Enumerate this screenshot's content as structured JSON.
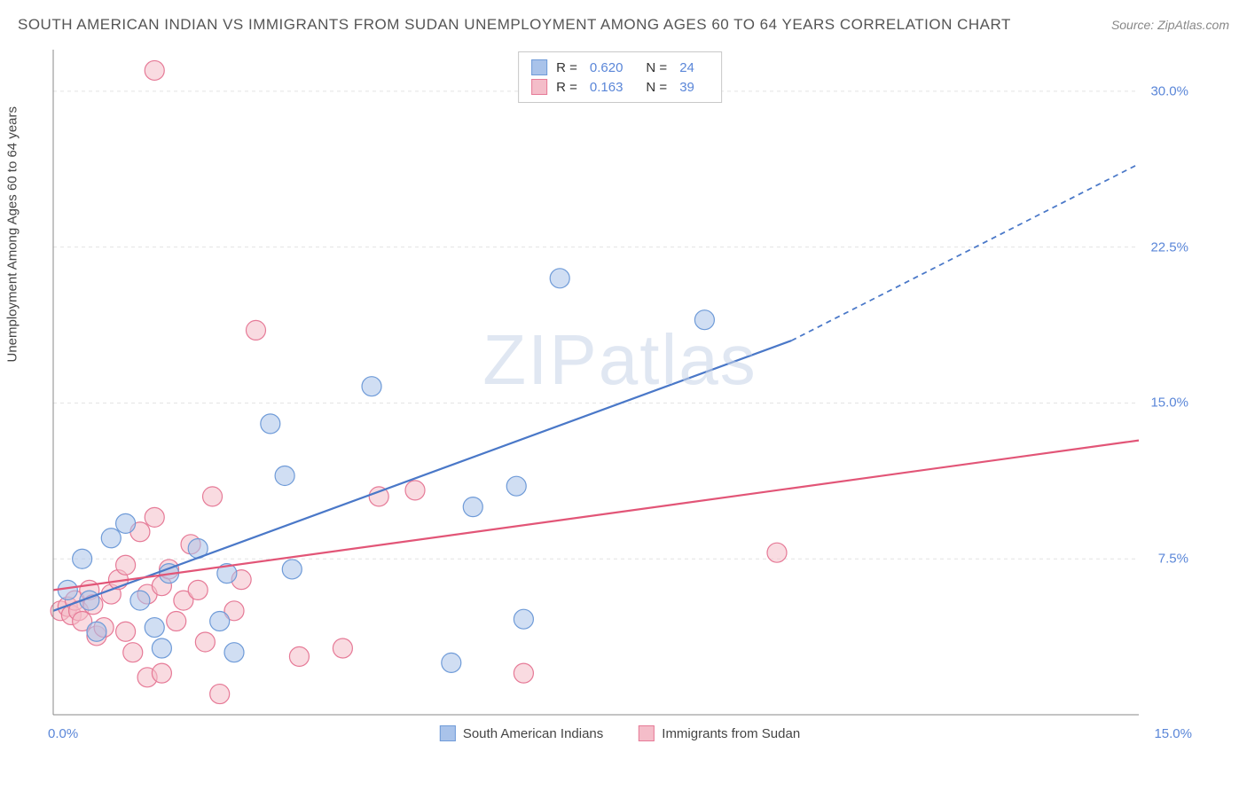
{
  "header": {
    "title": "SOUTH AMERICAN INDIAN VS IMMIGRANTS FROM SUDAN UNEMPLOYMENT AMONG AGES 60 TO 64 YEARS CORRELATION CHART",
    "source": "Source: ZipAtlas.com"
  },
  "watermark": "ZIPatlas",
  "yAxisLabel": "Unemployment Among Ages 60 to 64 years",
  "chart": {
    "type": "scatter",
    "xlim": [
      0,
      15
    ],
    "ylim": [
      0,
      32
    ],
    "xTickLeft": "0.0%",
    "xTickRight": "15.0%",
    "yTicks": [
      {
        "value": 7.5,
        "label": "7.5%"
      },
      {
        "value": 15.0,
        "label": "15.0%"
      },
      {
        "value": 22.5,
        "label": "22.5%"
      },
      {
        "value": 30.0,
        "label": "30.0%"
      }
    ],
    "background_color": "#ffffff",
    "grid_color": "#e4e4e4",
    "axis_color": "#888888",
    "marker_radius": 11,
    "marker_opacity": 0.55,
    "series": [
      {
        "id": "series-a",
        "label": "South American Indians",
        "color_fill": "#a9c3ea",
        "color_stroke": "#6f9bd8",
        "r_value": "0.620",
        "n_value": "24",
        "trend": {
          "x1": 0,
          "y1": 5.0,
          "x2": 10.2,
          "y2": 18.0,
          "dash_from_x": 10.2,
          "dash_to_x": 15.0,
          "dash_to_y": 26.5,
          "stroke": "#4a78c8",
          "width": 2.2
        },
        "points": [
          [
            0.2,
            6.0
          ],
          [
            0.4,
            7.5
          ],
          [
            0.5,
            5.5
          ],
          [
            0.6,
            4.0
          ],
          [
            0.8,
            8.5
          ],
          [
            1.0,
            9.2
          ],
          [
            1.2,
            5.5
          ],
          [
            1.4,
            4.2
          ],
          [
            1.5,
            3.2
          ],
          [
            1.6,
            6.8
          ],
          [
            2.0,
            8.0
          ],
          [
            2.3,
            4.5
          ],
          [
            2.4,
            6.8
          ],
          [
            2.5,
            3.0
          ],
          [
            3.0,
            14.0
          ],
          [
            3.2,
            11.5
          ],
          [
            3.3,
            7.0
          ],
          [
            4.4,
            15.8
          ],
          [
            5.5,
            2.5
          ],
          [
            5.8,
            10.0
          ],
          [
            6.4,
            11.0
          ],
          [
            6.5,
            4.6
          ],
          [
            7.0,
            21.0
          ],
          [
            9.0,
            19.0
          ]
        ]
      },
      {
        "id": "series-b",
        "label": "Immigrants from Sudan",
        "color_fill": "#f4bdc9",
        "color_stroke": "#e67a97",
        "r_value": "0.163",
        "n_value": "39",
        "trend": {
          "x1": 0,
          "y1": 6.0,
          "x2": 15.0,
          "y2": 13.2,
          "stroke": "#e25577",
          "width": 2.2
        },
        "points": [
          [
            0.1,
            5.0
          ],
          [
            0.2,
            5.2
          ],
          [
            0.25,
            4.8
          ],
          [
            0.3,
            5.5
          ],
          [
            0.35,
            5.0
          ],
          [
            0.4,
            4.5
          ],
          [
            0.5,
            6.0
          ],
          [
            0.55,
            5.3
          ],
          [
            0.6,
            3.8
          ],
          [
            0.7,
            4.2
          ],
          [
            0.8,
            5.8
          ],
          [
            0.9,
            6.5
          ],
          [
            1.0,
            7.2
          ],
          [
            1.0,
            4.0
          ],
          [
            1.1,
            3.0
          ],
          [
            1.2,
            8.8
          ],
          [
            1.3,
            5.8
          ],
          [
            1.3,
            1.8
          ],
          [
            1.4,
            9.5
          ],
          [
            1.5,
            6.2
          ],
          [
            1.5,
            2.0
          ],
          [
            1.6,
            7.0
          ],
          [
            1.7,
            4.5
          ],
          [
            1.8,
            5.5
          ],
          [
            1.9,
            8.2
          ],
          [
            2.0,
            6.0
          ],
          [
            2.1,
            3.5
          ],
          [
            2.2,
            10.5
          ],
          [
            2.3,
            1.0
          ],
          [
            2.5,
            5.0
          ],
          [
            2.6,
            6.5
          ],
          [
            1.4,
            31.0
          ],
          [
            2.8,
            18.5
          ],
          [
            3.4,
            2.8
          ],
          [
            4.0,
            3.2
          ],
          [
            4.5,
            10.5
          ],
          [
            5.0,
            10.8
          ],
          [
            6.5,
            2.0
          ],
          [
            10.0,
            7.8
          ]
        ]
      }
    ]
  },
  "legendTop": {
    "rLabel": "R =",
    "nLabel": "N ="
  }
}
